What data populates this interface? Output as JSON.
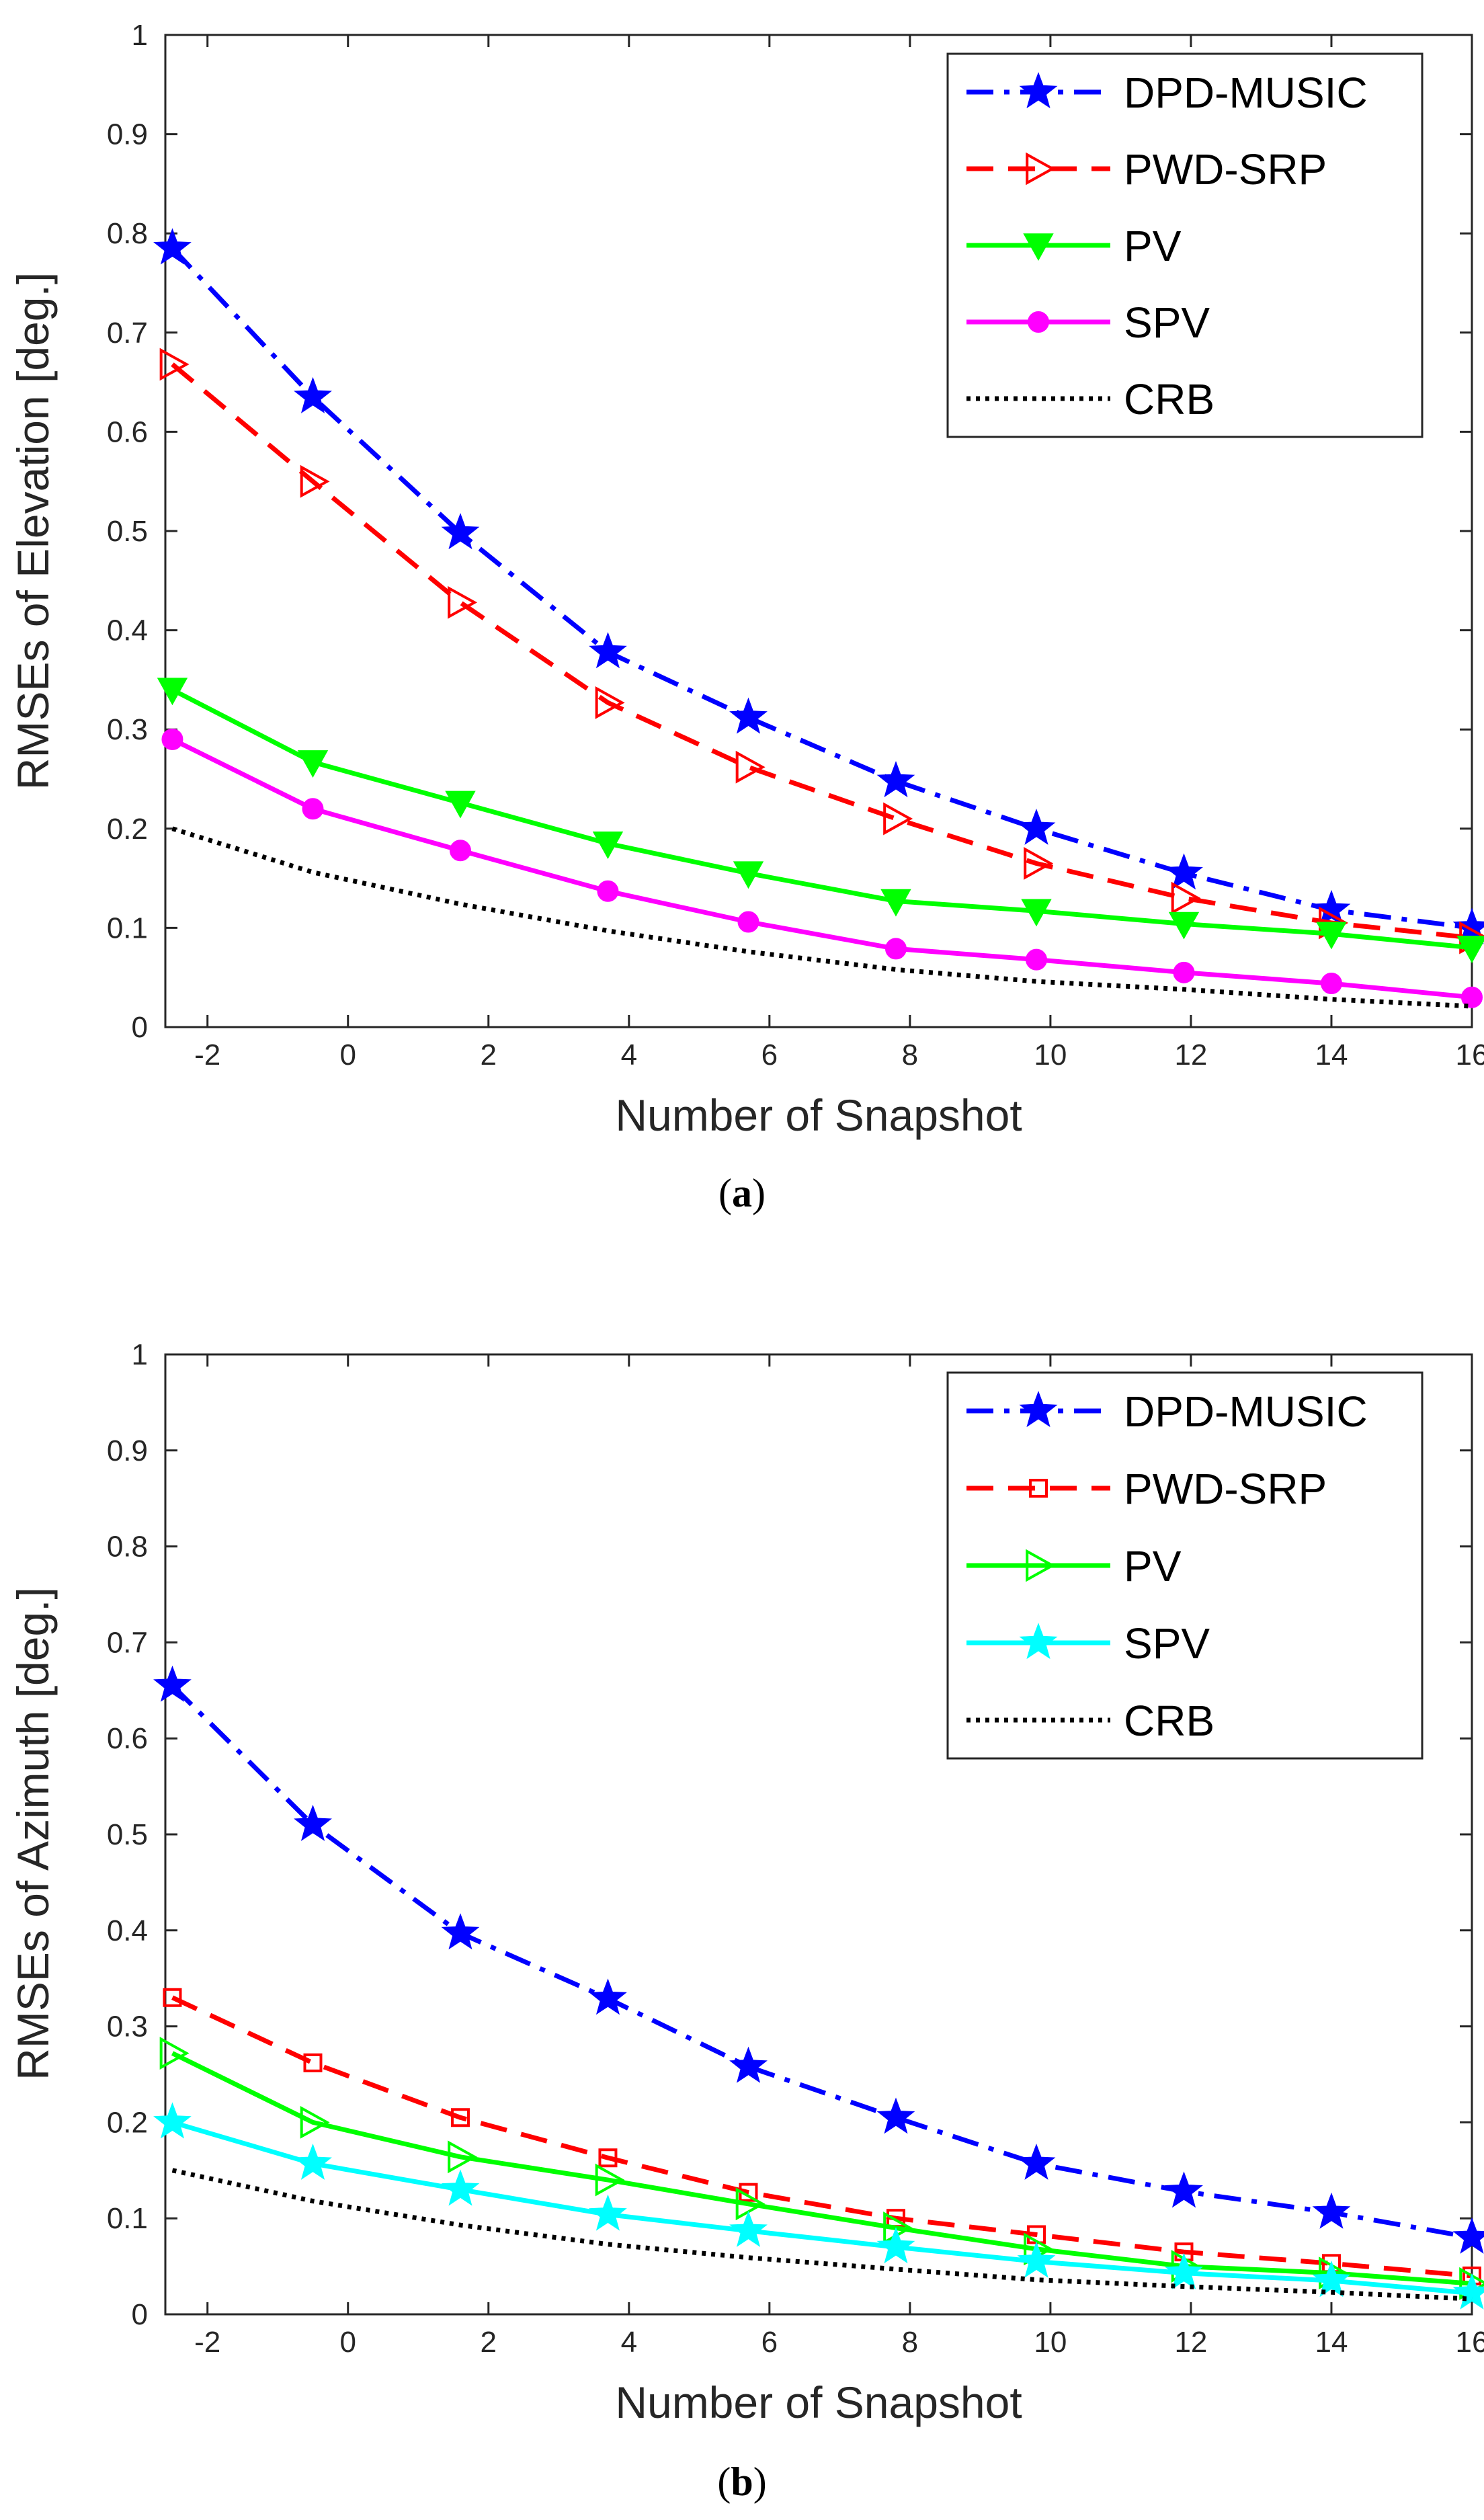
{
  "charts": [
    {
      "id": "a",
      "caption_open": "(",
      "caption_letter": "a",
      "caption_close": ")",
      "chart_data": {
        "type": "line",
        "xlabel": "Number of Snapshot",
        "ylabel": "RMSEs of Elevation [deg.]",
        "xlim": [
          -2.6,
          16
        ],
        "ylim": [
          0,
          1
        ],
        "x_ticks": [
          -2,
          0,
          2,
          4,
          6,
          8,
          10,
          12,
          14,
          16
        ],
        "y_ticks": [
          0,
          0.1,
          0.2,
          0.3,
          0.4,
          0.5,
          0.6,
          0.7,
          0.8,
          0.9,
          1
        ],
        "y_tick_labels": [
          "0",
          "0.1",
          "0.2",
          "0.3",
          "0.4",
          "0.5",
          "0.6",
          "0.7",
          "0.8",
          "0.9",
          "1"
        ],
        "x": [
          -2.5,
          -0.5,
          1.6,
          3.7,
          5.7,
          7.8,
          9.8,
          11.9,
          14,
          16
        ],
        "legend_position": "top-right",
        "series": [
          {
            "name": "DPD-MUSIC",
            "color": "#0000ff",
            "dash": "dashdot",
            "marker": "star",
            "values": [
              0.785,
              0.635,
              0.498,
              0.378,
              0.312,
              0.248,
              0.2,
              0.155,
              0.118,
              0.1
            ]
          },
          {
            "name": "PWD-SRP",
            "color": "#ff0000",
            "dash": "dash",
            "marker": "triangle-right",
            "values": [
              0.668,
              0.55,
              0.428,
              0.327,
              0.262,
              0.21,
              0.165,
              0.13,
              0.105,
              0.09
            ]
          },
          {
            "name": "PV",
            "color": "#00ff00",
            "dash": "solid",
            "marker": "triangle-down",
            "values": [
              0.34,
              0.267,
              0.226,
              0.185,
              0.155,
              0.127,
              0.117,
              0.104,
              0.094,
              0.08
            ]
          },
          {
            "name": "SPV",
            "color": "#ff00ff",
            "dash": "solid",
            "marker": "circle",
            "values": [
              0.29,
              0.22,
              0.178,
              0.137,
              0.106,
              0.079,
              0.068,
              0.055,
              0.044,
              0.03
            ]
          },
          {
            "name": "CRB",
            "color": "#000000",
            "dash": "dot",
            "marker": "none",
            "values": [
              0.2,
              0.156,
              0.124,
              0.097,
              0.076,
              0.058,
              0.046,
              0.038,
              0.028,
              0.021
            ]
          }
        ]
      }
    },
    {
      "id": "b",
      "caption_open": "(",
      "caption_letter": "b",
      "caption_close": ")",
      "chart_data": {
        "type": "line",
        "xlabel": "Number of Snapshot",
        "ylabel": "RMSEs of Azimuth [deg.]",
        "xlim": [
          -2.6,
          16
        ],
        "ylim": [
          0,
          1
        ],
        "x_ticks": [
          -2,
          0,
          2,
          4,
          6,
          8,
          10,
          12,
          14,
          16
        ],
        "y_ticks": [
          0,
          0.1,
          0.2,
          0.3,
          0.4,
          0.5,
          0.6,
          0.7,
          0.8,
          0.9,
          1
        ],
        "y_tick_labels": [
          "0",
          "0.1",
          "0.2",
          "0.3",
          "0.4",
          "0.5",
          "0.6",
          "0.7",
          "0.8",
          "0.9",
          "1"
        ],
        "x": [
          -2.5,
          -0.5,
          1.6,
          3.7,
          5.7,
          7.8,
          9.8,
          11.9,
          14,
          16
        ],
        "legend_position": "top-right",
        "series": [
          {
            "name": "DPD-MUSIC",
            "color": "#0000ff",
            "dash": "dashdot",
            "marker": "star",
            "values": [
              0.655,
              0.51,
              0.397,
              0.329,
              0.258,
              0.205,
              0.157,
              0.128,
              0.106,
              0.08
            ]
          },
          {
            "name": "PWD-SRP",
            "color": "#ff0000",
            "dash": "dash",
            "marker": "square",
            "values": [
              0.33,
              0.262,
              0.205,
              0.163,
              0.127,
              0.1,
              0.083,
              0.065,
              0.053,
              0.04
            ]
          },
          {
            "name": "PV",
            "color": "#00ff00",
            "dash": "solid",
            "marker": "triangle-right",
            "values": [
              0.272,
              0.2,
              0.164,
              0.14,
              0.115,
              0.09,
              0.068,
              0.05,
              0.043,
              0.032
            ]
          },
          {
            "name": "SPV",
            "color": "#00ffff",
            "dash": "solid",
            "marker": "star",
            "values": [
              0.2,
              0.157,
              0.13,
              0.104,
              0.087,
              0.07,
              0.055,
              0.043,
              0.035,
              0.022
            ]
          },
          {
            "name": "CRB",
            "color": "#000000",
            "dash": "dot",
            "marker": "none",
            "values": [
              0.15,
              0.118,
              0.093,
              0.073,
              0.059,
              0.047,
              0.036,
              0.029,
              0.023,
              0.016
            ]
          }
        ]
      }
    }
  ]
}
